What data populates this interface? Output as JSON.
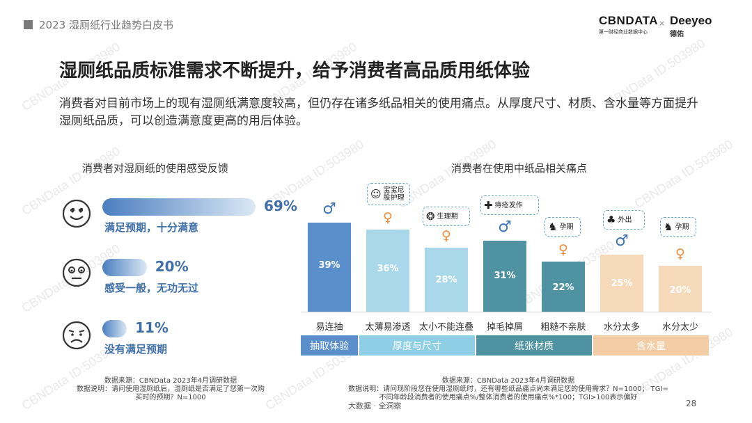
{
  "header": {
    "doc_title": "2023 湿厕纸行业趋势白皮书",
    "logo_primary": "CBNDATA",
    "logo_primary_sub": "第一财经商业数据中心",
    "logo_separator": "×",
    "logo_secondary": "Deeyeo",
    "logo_secondary_sub": "德佑"
  },
  "watermark": "CBNData ID:503980",
  "title": "湿厕纸品质标准需求不断提升，给予消费者高品质用纸体验",
  "subtitle": "消费者对目前市场上的现有湿厕纸满意度较高，但仍存在诸多纸品相关的使用痛点。从厚度尺寸、材质、含水量等方面提升湿厕纸品质，可以创造满意度更高的用后体验。",
  "left_section": {
    "title": "消费者对湿厕纸的使用感受反馈",
    "source": "数据来源：CBNData 2023年4月调研数据",
    "note": "数据说明：请问使用湿厕纸后，湿厕纸是否满足了您第一次购买时的预期？N=1000"
  },
  "right_section": {
    "title": "消费者在使用中纸品相关痛点",
    "source": "数据来源：CBNData 2023年4月调研数据",
    "note": "数据说明：请问现阶段您在使用湿厕纸时，还有哪些纸品痛点尚未满足您的使用需求？N=1000； TGI=不同年龄段消费者的使用痛点%/整体消费者的使用痛点%*100；TGI>100表示偏好"
  },
  "footer": {
    "center": "大数据 · 全洞察",
    "page": "28"
  },
  "colors": {
    "blue_dark": "#5b8fcb",
    "blue_light": "#a8d8ea",
    "teal": "#4f93a3",
    "peach": "#f6d9b8",
    "label_blue": "#3f6fa8",
    "male": "#3c74b8",
    "female": "#f08c3a"
  },
  "chart_data": [
    {
      "type": "bar",
      "orientation": "horizontal",
      "title": "消费者对湿厕纸的使用感受反馈",
      "categories": [
        "满足预期，十分满意",
        "感受一般，无功无过",
        "没有满足预期"
      ],
      "values": [
        69,
        20,
        11
      ],
      "value_labels": [
        "69%",
        "20%",
        "11%"
      ],
      "icons": [
        "heart-eyes-face-icon",
        "neutral-face-icon",
        "sad-face-icon"
      ]
    },
    {
      "type": "bar",
      "title": "消费者在使用中纸品相关痛点",
      "categories": [
        "易连抽",
        "太薄易渗透",
        "太小不能连叠",
        "掉毛掉屑",
        "粗糙不亲肤",
        "水分太多",
        "水分太少"
      ],
      "values": [
        39,
        36,
        28,
        31,
        22,
        25,
        20
      ],
      "value_labels": [
        "39%",
        "36%",
        "28%",
        "31%",
        "22%",
        "25%",
        "20%"
      ],
      "ylim": [
        0,
        45
      ],
      "gender": [
        "male",
        "female",
        "female",
        "male",
        "female",
        "male",
        "female"
      ],
      "bar_groups": [
        "抽取体验",
        "厚度与尺寸",
        "厚度与尺寸",
        "纸张材质",
        "纸张材质",
        "含水量",
        "含水量"
      ],
      "groups": [
        "抽取体验",
        "厚度与尺寸",
        "纸张材质",
        "含水量"
      ],
      "callouts": [
        {
          "category": "太薄易渗透",
          "text": "宝宝尼股护理",
          "icon": "baby-icon"
        },
        {
          "category": "太小不能连叠",
          "text": "生理期",
          "icon": "uterus-icon"
        },
        {
          "category": "掉毛掉屑",
          "text": "痔疮发作",
          "icon": "first-aid-icon"
        },
        {
          "category": "粗糙不亲肤",
          "text": "孕期",
          "icon": "pregnant-icon"
        },
        {
          "category": "水分太多",
          "text": "外出",
          "icon": "palm-tree-icon"
        },
        {
          "category": "水分太少",
          "text": "孕期",
          "icon": "pregnant-icon"
        }
      ]
    }
  ]
}
